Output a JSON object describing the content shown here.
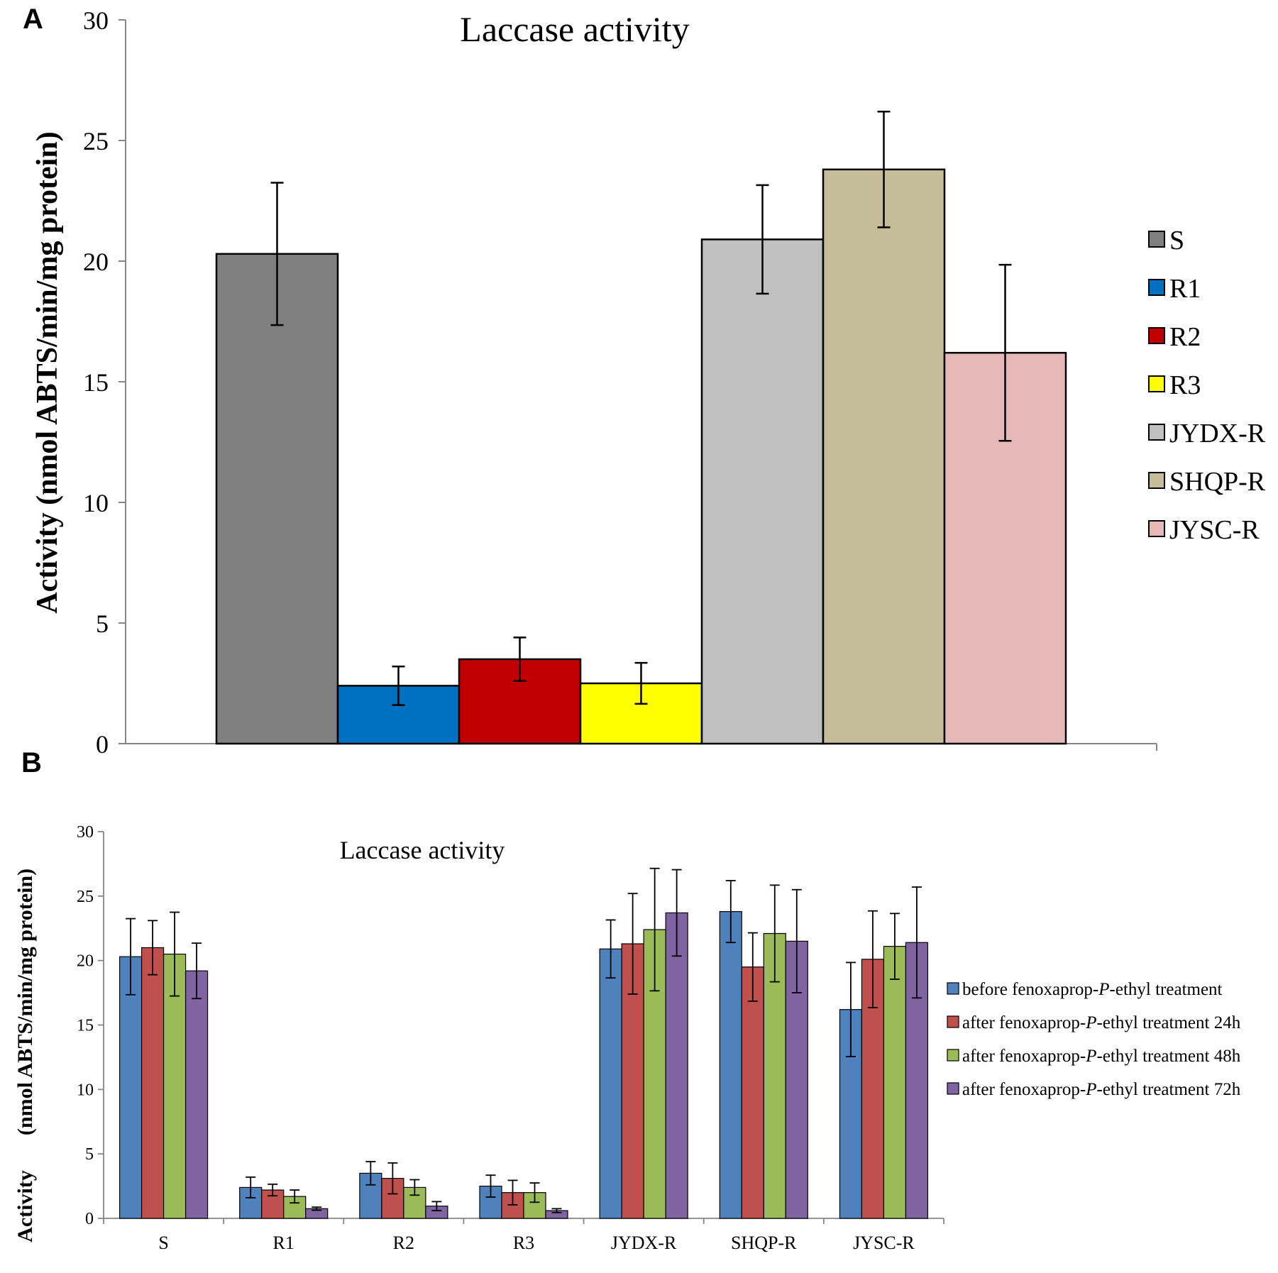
{
  "colors": {
    "a": [
      "#808080",
      "#0070c0",
      "#c00000",
      "#ffff00",
      "#c0c0c0",
      "#c4bd97",
      "#e6b9b8"
    ],
    "b": [
      "#4f81bd",
      "#c0504d",
      "#9bbb59",
      "#8064a2"
    ]
  },
  "chart_data": [
    {
      "panel": "A",
      "type": "bar",
      "title": "Laccase activity",
      "xlabel": "",
      "ylabel": "Activity  (nmol ABTS/min/mg protein)",
      "ylim": [
        0,
        30
      ],
      "yticks": [
        "0",
        "5",
        "10",
        "15",
        "20",
        "25",
        "30"
      ],
      "categories": [
        "S",
        "R1",
        "R2",
        "R3",
        "JYDX-R",
        "SHQP-R",
        "JYSC-R"
      ],
      "values": [
        20.3,
        2.4,
        3.5,
        2.5,
        20.9,
        23.8,
        16.2
      ],
      "errors": [
        2.95,
        0.8,
        0.9,
        0.85,
        2.25,
        2.4,
        3.65
      ],
      "legend": [
        "S",
        "R1",
        "R2",
        "R3",
        "JYDX-R",
        "SHQP-R",
        "JYSC-R"
      ],
      "legend_position": "right"
    },
    {
      "panel": "B",
      "type": "bar",
      "title": "Laccase activity",
      "xlabel": "",
      "ylabel_parts": [
        "Activity",
        "(nmol ABTS/min/mg protein)"
      ],
      "ylim": [
        0,
        30
      ],
      "yticks": [
        "0",
        "5",
        "10",
        "15",
        "20",
        "25",
        "30"
      ],
      "categories": [
        "S",
        "R1",
        "R2",
        "R3",
        "JYDX-R",
        "SHQP-R",
        "JYSC-R"
      ],
      "series": [
        {
          "name_parts": [
            "before fenoxaprop-",
            "P",
            "-ethyl treatment"
          ],
          "values": [
            20.3,
            2.4,
            3.5,
            2.5,
            20.9,
            23.8,
            16.2
          ],
          "errors": [
            2.95,
            0.8,
            0.9,
            0.85,
            2.25,
            2.4,
            3.65
          ]
        },
        {
          "name_parts": [
            "after fenoxaprop-",
            "P",
            "-ethyl treatment 24h"
          ],
          "values": [
            21.0,
            2.2,
            3.1,
            2.0,
            21.3,
            19.5,
            20.1
          ],
          "errors": [
            2.1,
            0.45,
            1.2,
            0.95,
            3.9,
            2.65,
            3.75
          ]
        },
        {
          "name_parts": [
            "after fenoxaprop-",
            "P",
            "-ethyl treatment 48h"
          ],
          "values": [
            20.5,
            1.7,
            2.4,
            2.0,
            22.4,
            22.1,
            21.1
          ],
          "errors": [
            3.25,
            0.5,
            0.6,
            0.75,
            4.75,
            3.75,
            2.55
          ]
        },
        {
          "name_parts": [
            "after fenoxaprop-",
            "P",
            "-ethyl treatment 72h"
          ],
          "values": [
            19.2,
            0.75,
            0.95,
            0.6,
            23.7,
            21.5,
            21.4
          ],
          "errors": [
            2.15,
            0.12,
            0.35,
            0.15,
            3.35,
            4.0,
            4.3
          ]
        }
      ],
      "legend_position": "right"
    }
  ]
}
